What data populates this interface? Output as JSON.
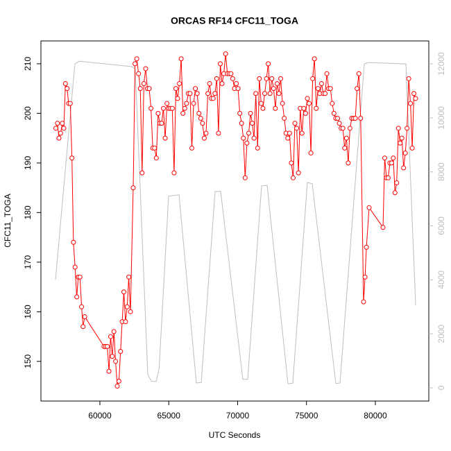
{
  "chart_data": {
    "type": "line",
    "title": "ORCAS RF14 CFC11_TOGA",
    "x_label": "UTC Seconds",
    "y_label": "CFC11_TOGA",
    "xlim": [
      55720,
      83880
    ],
    "ylim": [
      142,
      214.6
    ],
    "y2lim": [
      -490,
      12850
    ],
    "xticks": [
      60000,
      65000,
      70000,
      75000,
      80000
    ],
    "yticks": [
      150,
      160,
      170,
      180,
      190,
      200,
      210
    ],
    "y2ticks": [
      0,
      2000,
      4000,
      6000,
      8000,
      10000,
      12000
    ],
    "series": [
      {
        "color": "#bebebe",
        "axis": "y2",
        "x": [
          56776,
          57300,
          57784,
          58187,
          58500,
          62318,
          62570,
          63476,
          63729,
          64081,
          64300,
          64988,
          65744,
          67003,
          67356,
          68364,
          68767,
          70379,
          70731,
          71739,
          72142,
          73654,
          74006,
          75064,
          75416,
          77129,
          77431,
          79195,
          79500,
          82218,
          82923
        ],
        "values": [
          4000,
          7000,
          9740,
          12000,
          12100,
          11900,
          11800,
          490,
          250,
          230,
          700,
          7100,
          7150,
          180,
          200,
          7270,
          7280,
          310,
          320,
          7480,
          7500,
          150,
          170,
          7610,
          7560,
          160,
          180,
          12000,
          12050,
          12000,
          3060
        ]
      },
      {
        "color": "#ff0000",
        "markers": true,
        "x": [
          56800,
          56920,
          57030,
          57150,
          57270,
          57380,
          57500,
          57620,
          57730,
          57850,
          57970,
          58080,
          58200,
          58320,
          58430,
          58550,
          58670,
          58780,
          58900,
          60300,
          60420,
          60540,
          60660,
          60780,
          60900,
          61020,
          61140,
          61260,
          61380,
          61500,
          61620,
          61740,
          61860,
          61980,
          62100,
          62220,
          62420,
          62549,
          62678,
          62807,
          62936,
          63065,
          63194,
          63323,
          63452,
          63581,
          63710,
          63839,
          63968,
          64097,
          64226,
          64355,
          64484,
          64613,
          64742,
          64871,
          65000,
          65129,
          65258,
          65387,
          65516,
          65645,
          65774,
          65903,
          66032,
          66161,
          66290,
          66419,
          66548,
          66677,
          66806,
          66935,
          67064,
          67193,
          67322,
          67451,
          67580,
          67709,
          67838,
          67967,
          68096,
          68225,
          68354,
          68483,
          68612,
          68741,
          68870,
          68999,
          69128,
          69257,
          69386,
          69515,
          69644,
          69773,
          69902,
          70031,
          70160,
          70289,
          70418,
          70547,
          70676,
          70805,
          70934,
          71063,
          71192,
          71321,
          71450,
          71579,
          71708,
          71837,
          71966,
          72095,
          72224,
          72353,
          72482,
          72611,
          72740,
          72869,
          72998,
          73127,
          73256,
          73385,
          73514,
          73643,
          73772,
          73901,
          74030,
          74159,
          74288,
          74417,
          74546,
          74675,
          74804,
          74933,
          75062,
          75191,
          75320,
          75449,
          75578,
          75707,
          75836,
          75965,
          76094,
          76223,
          76352,
          76481,
          76610,
          76739,
          76868,
          76997,
          77126,
          77255,
          77384,
          77513,
          77642,
          77771,
          77900,
          78029,
          78158,
          78287,
          78416,
          78545,
          78674,
          78803,
          78932,
          79145,
          79250,
          79350,
          79547,
          80555,
          80680,
          80805,
          80930,
          81055,
          81180,
          81300,
          81425,
          81550,
          81675,
          81800,
          81925,
          82050,
          82175,
          82300,
          82425,
          82550,
          82675,
          82800,
          82923
        ],
        "values": [
          197,
          198,
          195,
          196,
          198,
          197,
          206,
          205,
          202,
          202,
          191,
          174,
          169,
          163,
          167,
          167,
          161,
          157,
          159,
          153,
          153,
          153,
          148,
          155,
          151,
          156,
          150,
          145,
          146,
          152,
          158,
          164,
          158,
          161,
          167,
          160,
          185,
          210,
          211,
          208,
          205,
          188,
          206,
          209,
          205,
          205,
          201,
          193,
          193,
          191,
          200,
          198,
          198,
          201,
          195,
          202,
          201,
          201,
          201,
          188,
          205,
          203,
          206,
          211,
          200,
          201,
          202,
          204,
          204,
          193,
          202,
          205,
          204,
          200,
          199,
          198,
          195,
          196,
          204,
          206,
          203,
          203,
          204,
          207,
          196,
          210,
          206,
          208,
          212,
          208,
          208,
          208,
          207,
          205,
          206,
          205,
          200,
          198,
          195,
          187,
          194,
          196,
          200,
          198,
          195,
          204,
          193,
          207,
          202,
          201,
          204,
          207,
          210,
          204,
          207,
          205,
          201,
          206,
          204,
          207,
          202,
          199,
          196,
          195,
          196,
          190,
          187,
          198,
          197,
          188,
          201,
          196,
          201,
          200,
          203,
          202,
          192,
          207,
          211,
          201,
          205,
          204,
          206,
          204,
          204,
          208,
          205,
          205,
          202,
          200,
          199,
          199,
          198,
          197,
          197,
          193,
          195,
          190,
          197,
          199,
          199,
          199,
          205,
          208,
          199,
          162,
          167,
          173,
          181,
          177,
          191,
          187,
          187,
          190,
          190,
          191,
          184,
          186,
          197,
          194,
          195,
          189,
          192,
          197,
          207,
          202,
          193,
          204,
          203
        ]
      }
    ]
  }
}
